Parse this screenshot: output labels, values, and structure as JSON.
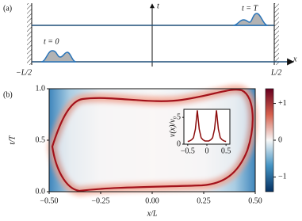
{
  "panel_a": {
    "label": "(a)",
    "t_axis": "t",
    "x_axis": "x",
    "start_label": "t = 0",
    "end_label": "t = T",
    "left_label": "−L/2",
    "right_label": "L/2"
  },
  "chart_data": {
    "type": "heatmap",
    "panel_label": "(b)",
    "xlabel": "x/L",
    "ylabel": "t/T",
    "xlim": [
      -0.5,
      0.5
    ],
    "ylim": [
      0,
      1
    ],
    "xticks": [
      {
        "value": -0.5,
        "label": "−0.50"
      },
      {
        "value": -0.25,
        "label": "−0.25"
      },
      {
        "value": 0,
        "label": "0.00"
      },
      {
        "value": 0.25,
        "label": "0.25"
      },
      {
        "value": 0.5,
        "label": "0.50"
      }
    ],
    "yticks": [
      {
        "value": 0,
        "label": "0.0"
      },
      {
        "value": 0.5,
        "label": "0.5"
      },
      {
        "value": 1,
        "label": "1.0"
      }
    ],
    "colorbar": {
      "lim": [
        -1.4,
        1.4
      ],
      "ticks": [
        {
          "value": -1,
          "label": "−1"
        },
        0,
        {
          "value": 1,
          "label": "+1"
        }
      ]
    },
    "inset": {
      "type": "line",
      "ylabel": "v(x)/v₀",
      "color": "#8b0a0a",
      "x": [
        -0.5,
        -0.45,
        -0.4,
        -0.35,
        -0.3,
        -0.25,
        -0.2,
        -0.15,
        -0.1,
        -0.05,
        0,
        0.05,
        0.1,
        0.15,
        0.2,
        0.25,
        0.3,
        0.35,
        0.4,
        0.45,
        0.5
      ],
      "values": [
        0.5,
        0.6,
        0.8,
        1.2,
        2.8,
        6.3,
        2.8,
        1.2,
        0.8,
        0.6,
        0.6,
        0.6,
        0.8,
        1.2,
        2.8,
        6.3,
        2.8,
        1.2,
        0.8,
        0.6,
        0.5
      ],
      "xlim": [
        -0.6,
        0.6
      ],
      "ylim": [
        0,
        6.5
      ],
      "xticks": [
        {
          "value": -0.5,
          "label": "−0.5"
        },
        0,
        0.5
      ],
      "yticks": [
        0,
        5
      ]
    }
  }
}
